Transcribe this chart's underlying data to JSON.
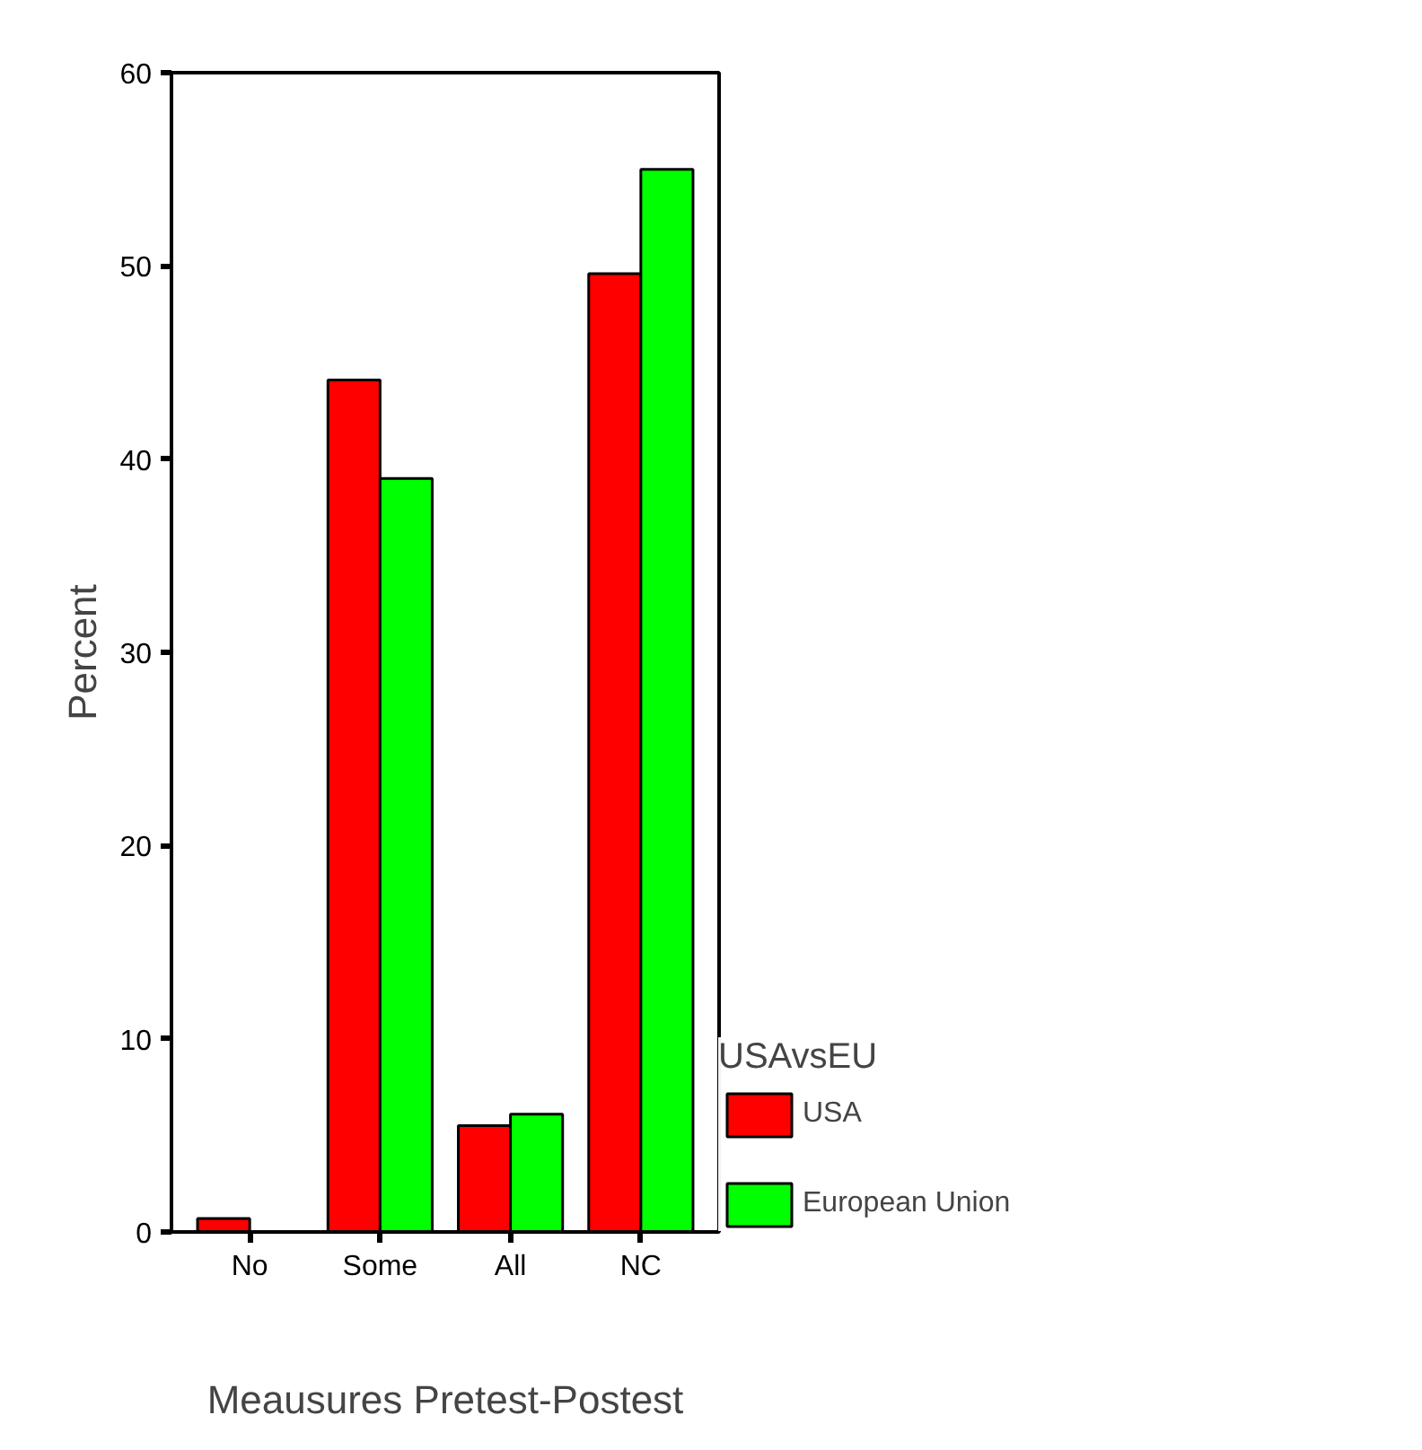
{
  "chart_data": {
    "type": "bar",
    "xlabel": "Meausures Pretest-Postest",
    "ylabel": "Percent",
    "legend_title": "USAvsEU",
    "categories": [
      "No",
      "Some",
      "All",
      "NC"
    ],
    "series": [
      {
        "name": "USA",
        "color": "#ff0000",
        "values": [
          0.7,
          44.1,
          5.5,
          49.6
        ]
      },
      {
        "name": "European Union",
        "color": "#00ff00",
        "values": [
          null,
          39.0,
          6.1,
          55.0
        ]
      }
    ],
    "ylim": [
      0,
      60
    ],
    "yticks": [
      0,
      10,
      20,
      30,
      40,
      50,
      60
    ],
    "grid": false,
    "legend": "right"
  }
}
